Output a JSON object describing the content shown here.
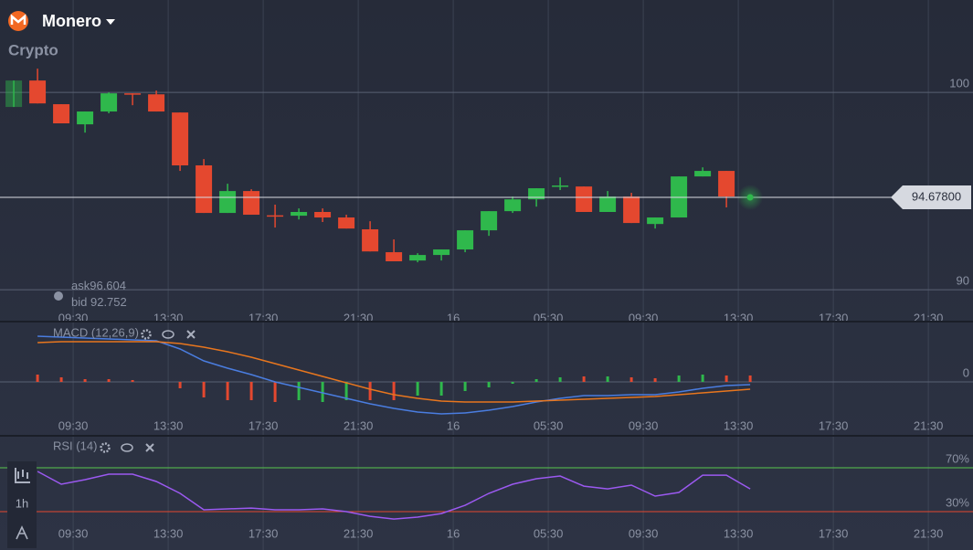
{
  "header": {
    "asset": "Monero",
    "category": "Crypto"
  },
  "quote": {
    "ask_label": "ask",
    "ask": 96.604,
    "bid_label": "bid",
    "bid": 92.752
  },
  "toolbar": {
    "timeframe": "1h"
  },
  "chart_data": [
    {
      "type": "candlestick",
      "x": [
        7,
        8,
        9,
        10,
        11,
        12,
        13,
        14,
        15,
        16,
        17,
        18,
        19,
        20,
        21,
        22,
        23,
        24,
        25,
        26,
        27,
        28,
        29,
        30,
        31,
        32,
        33,
        34,
        35,
        36,
        37
      ],
      "open": [
        99.26,
        100.6,
        99.4,
        98.38,
        99.03,
        99.95,
        99.9,
        98.98,
        96.3,
        93.89,
        95.0,
        93.77,
        93.75,
        93.94,
        93.66,
        93.06,
        91.9,
        91.48,
        91.76,
        92.04,
        93.01,
        93.98,
        94.58,
        95.23,
        95.23,
        93.94,
        94.72,
        93.33,
        93.66,
        95.74,
        96.02
      ],
      "high": [
        100.6,
        101.2,
        99.4,
        99.03,
        100.0,
        99.95,
        100.09,
        98.98,
        96.62,
        95.37,
        95.09,
        94.31,
        94.12,
        94.12,
        93.8,
        93.47,
        92.55,
        91.85,
        92.04,
        93.01,
        93.98,
        94.72,
        95.14,
        95.69,
        95.23,
        95.0,
        94.91,
        93.66,
        95.74,
        96.2,
        96.02
      ],
      "low": [
        99.26,
        99.44,
        98.43,
        97.96,
        98.94,
        99.35,
        99.03,
        96.02,
        93.89,
        93.89,
        93.8,
        93.15,
        93.56,
        93.43,
        93.1,
        91.94,
        91.44,
        91.39,
        91.48,
        91.9,
        92.73,
        93.89,
        94.21,
        95.05,
        93.94,
        93.94,
        93.38,
        93.1,
        93.66,
        95.74,
        94.17
      ],
      "close": [
        100.6,
        99.44,
        98.43,
        99.03,
        99.95,
        99.9,
        99.03,
        96.3,
        93.89,
        95.0,
        93.8,
        93.75,
        93.94,
        93.66,
        93.1,
        91.94,
        91.44,
        91.76,
        92.04,
        93.01,
        93.98,
        94.58,
        95.14,
        95.28,
        93.94,
        94.72,
        93.38,
        93.66,
        95.74,
        96.02,
        94.72
      ],
      "up_color": "#2fb84c",
      "down_color": "#e4482f",
      "current": {
        "x": 38,
        "value": 94.678,
        "label": "94.67800"
      },
      "xlim": [
        6.42,
        47.38
      ],
      "xticks": [
        {
          "value": 9.5,
          "label": "09:30"
        },
        {
          "value": 13.5,
          "label": "13:30"
        },
        {
          "value": 17.5,
          "label": "17:30"
        },
        {
          "value": 21.5,
          "label": "21:30"
        },
        {
          "value": 25.5,
          "label": "16"
        },
        {
          "value": 29.5,
          "label": "05:30"
        },
        {
          "value": 33.5,
          "label": "09:30"
        },
        {
          "value": 37.5,
          "label": "13:30"
        },
        {
          "value": 41.5,
          "label": "17:30"
        },
        {
          "value": 45.5,
          "label": "21:30"
        }
      ],
      "ylim": [
        88.94,
        104.68
      ],
      "yticks": [
        100,
        90
      ]
    },
    {
      "type": "macd",
      "title": "MACD (12,26,9)",
      "x": [
        8,
        9,
        10,
        11,
        12,
        13,
        14,
        15,
        16,
        17,
        18,
        19,
        20,
        21,
        22,
        23,
        24,
        25,
        26,
        27,
        28,
        29,
        30,
        31,
        32,
        33,
        34,
        35,
        36,
        37,
        38
      ],
      "histogram": {
        "values": [
          0.8,
          0.5,
          0.3,
          0.3,
          0.2,
          0,
          -0.7,
          -1.7,
          -2.0,
          -2.0,
          -2.2,
          -2.0,
          -2.2,
          -2.0,
          -2.0,
          -2.0,
          -1.5,
          -1.5,
          -1.0,
          -0.6,
          -0.2,
          0.3,
          0.5,
          0.6,
          0.6,
          0.5,
          0.4,
          0.7,
          0.8,
          0.7,
          0.7
        ],
        "colors": [
          "#e4482f",
          "#e4482f",
          "#e4482f",
          "#e4482f",
          "#e4482f",
          "#e4482f",
          "#e4482f",
          "#e4482f",
          "#e4482f",
          "#e4482f",
          "#e4482f",
          "#2fb84c",
          "#2fb84c",
          "#2fb84c",
          "#e4482f",
          "#e4482f",
          "#2fb84c",
          "#2fb84c",
          "#2fb84c",
          "#2fb84c",
          "#2fb84c",
          "#2fb84c",
          "#2fb84c",
          "#e4482f",
          "#2fb84c",
          "#e4482f",
          "#e4482f",
          "#2fb84c",
          "#2fb84c",
          "#e4482f",
          "#e4482f"
        ]
      },
      "series": [
        {
          "color": "#4a7de0",
          "values": [
            5.0,
            4.9,
            4.8,
            4.7,
            4.6,
            4.5,
            3.6,
            2.3,
            1.5,
            0.8,
            0,
            -0.6,
            -1.2,
            -1.8,
            -2.4,
            -2.9,
            -3.3,
            -3.5,
            -3.4,
            -3.1,
            -2.7,
            -2.2,
            -1.8,
            -1.5,
            -1.5,
            -1.4,
            -1.4,
            -1.1,
            -0.7,
            -0.4,
            -0.3
          ]
        },
        {
          "color": "#e8761e",
          "values": [
            4.3,
            4.4,
            4.4,
            4.4,
            4.4,
            4.4,
            4.2,
            3.8,
            3.3,
            2.7,
            2.0,
            1.3,
            0.6,
            -0.1,
            -0.8,
            -1.4,
            -1.8,
            -2.1,
            -2.2,
            -2.2,
            -2.2,
            -2.1,
            -2.0,
            -1.9,
            -1.8,
            -1.7,
            -1.6,
            -1.4,
            -1.2,
            -1.0,
            -0.8
          ]
        }
      ],
      "ylim": [
        -5.7,
        6.3
      ],
      "yticks": [
        0
      ]
    },
    {
      "type": "rsi",
      "title": "RSI (14)",
      "x": [
        8,
        9,
        10,
        11,
        12,
        13,
        14,
        15,
        16,
        17,
        18,
        19,
        20,
        21,
        22,
        23,
        24,
        25,
        26,
        27,
        28,
        29,
        30,
        31,
        32,
        33,
        34,
        35,
        36,
        37,
        38
      ],
      "series": [
        {
          "color": "#9b59f0",
          "values": [
            66.7,
            55,
            59.2,
            64.2,
            64.2,
            57.5,
            46.7,
            31.7,
            32.5,
            33.3,
            31.7,
            31.7,
            32.5,
            30,
            25.8,
            23.3,
            25,
            28.3,
            35.8,
            46.7,
            55,
            60,
            62.5,
            53.3,
            50.8,
            54.2,
            44.2,
            47.5,
            63.3,
            63.3,
            50.8
          ]
        }
      ],
      "levels": [
        {
          "value": 70,
          "label": "70%",
          "color": "#57c84d"
        },
        {
          "value": 30,
          "label": "30%",
          "color": "#e4482f"
        }
      ],
      "ylim": [
        -3.3,
        96.7
      ]
    }
  ]
}
